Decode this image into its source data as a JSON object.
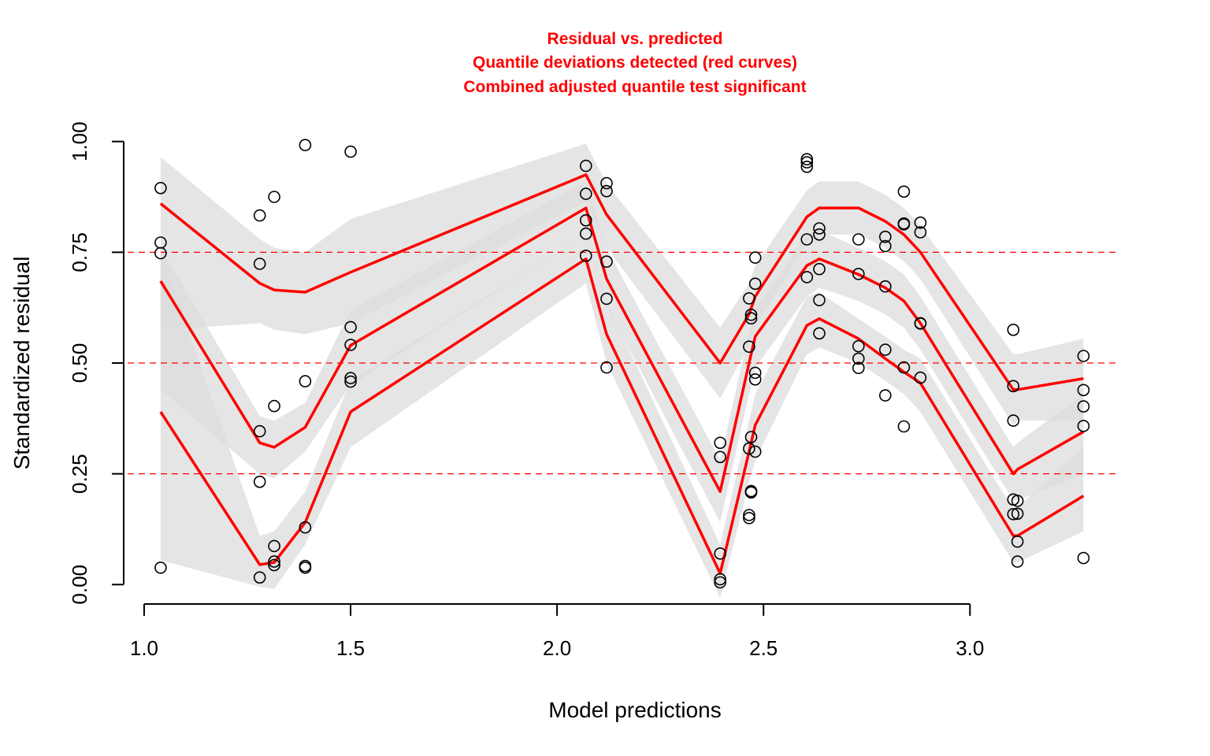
{
  "chart_data": {
    "type": "scatter",
    "title_lines": [
      "Residual vs. predicted",
      "Quantile deviations detected (red curves)",
      "Combined adjusted quantile test significant"
    ],
    "xlabel": "Model predictions",
    "ylabel": "Standardized residual",
    "xlim": [
      0.96,
      3.36
    ],
    "ylim": [
      -0.035,
      1.035
    ],
    "x_ticks": [
      1.0,
      1.5,
      2.0,
      2.5,
      3.0
    ],
    "x_tick_labels": [
      "1.0",
      "1.5",
      "2.0",
      "2.5",
      "3.0"
    ],
    "y_ticks": [
      0.0,
      0.25,
      0.5,
      0.75,
      1.0
    ],
    "y_tick_labels": [
      "0.00",
      "0.25",
      "0.50",
      "0.75",
      "1.00"
    ],
    "reference_lines": [
      0.25,
      0.5,
      0.75
    ],
    "grid": false,
    "colors": {
      "title": "#ff0000",
      "quantile_curve": "#ff0000",
      "reference_line": "#ff0000",
      "band": "#dcdcdc",
      "band_overlap": "#c4c4c4",
      "points": "#000000",
      "axis": "#000000"
    },
    "quantile_x": [
      1.04,
      1.28,
      1.315,
      1.39,
      1.5,
      2.07,
      2.12,
      2.395,
      2.465,
      2.48,
      2.605,
      2.635,
      2.73,
      2.795,
      2.84,
      2.88,
      3.105,
      3.115,
      3.275
    ],
    "quantile_curves": [
      {
        "quantile": 0.25,
        "values": [
          0.39,
          0.045,
          0.05,
          0.14,
          0.39,
          0.735,
          0.565,
          0.025,
          0.3,
          0.36,
          0.585,
          0.6,
          0.555,
          0.51,
          0.48,
          0.455,
          0.11,
          0.11,
          0.2
        ]
      },
      {
        "quantile": 0.5,
        "values": [
          0.685,
          0.32,
          0.31,
          0.355,
          0.54,
          0.85,
          0.69,
          0.21,
          0.5,
          0.56,
          0.72,
          0.735,
          0.7,
          0.67,
          0.64,
          0.59,
          0.25,
          0.26,
          0.345
        ]
      },
      {
        "quantile": 0.75,
        "values": [
          0.86,
          0.68,
          0.665,
          0.66,
          0.705,
          0.925,
          0.835,
          0.5,
          0.61,
          0.65,
          0.83,
          0.85,
          0.85,
          0.82,
          0.79,
          0.75,
          0.44,
          0.44,
          0.465
        ]
      }
    ],
    "simulation_bands": [
      {
        "quantile": 0.25,
        "lower": [
          0.055,
          -0.005,
          -0.01,
          0.09,
          0.31,
          0.68,
          0.5,
          -0.03,
          0.23,
          0.28,
          0.52,
          0.535,
          0.5,
          0.46,
          0.43,
          0.39,
          0.05,
          0.05,
          0.12
        ],
        "upper": [
          0.75,
          0.11,
          0.12,
          0.21,
          0.46,
          0.79,
          0.64,
          0.09,
          0.37,
          0.43,
          0.65,
          0.66,
          0.6,
          0.56,
          0.53,
          0.51,
          0.17,
          0.175,
          0.31
        ]
      },
      {
        "quantile": 0.5,
        "lower": [
          0.44,
          0.25,
          0.24,
          0.3,
          0.45,
          0.79,
          0.63,
          0.14,
          0.43,
          0.49,
          0.65,
          0.67,
          0.64,
          0.61,
          0.58,
          0.53,
          0.19,
          0.19,
          0.25
        ],
        "upper": [
          0.76,
          0.38,
          0.37,
          0.41,
          0.62,
          0.91,
          0.76,
          0.28,
          0.57,
          0.62,
          0.79,
          0.8,
          0.76,
          0.73,
          0.7,
          0.65,
          0.31,
          0.32,
          0.43
        ]
      },
      {
        "quantile": 0.75,
        "lower": [
          0.575,
          0.59,
          0.575,
          0.565,
          0.59,
          0.865,
          0.76,
          0.42,
          0.54,
          0.58,
          0.77,
          0.79,
          0.79,
          0.76,
          0.73,
          0.69,
          0.36,
          0.37,
          0.37
        ],
        "upper": [
          0.965,
          0.78,
          0.76,
          0.75,
          0.825,
          0.995,
          0.905,
          0.58,
          0.68,
          0.72,
          0.89,
          0.91,
          0.91,
          0.88,
          0.85,
          0.81,
          0.52,
          0.52,
          0.555
        ]
      }
    ],
    "points": {
      "x": [
        1.04,
        1.04,
        1.04,
        1.04,
        1.28,
        1.28,
        1.28,
        1.28,
        1.28,
        1.315,
        1.315,
        1.315,
        1.315,
        1.315,
        1.39,
        1.39,
        1.39,
        1.39,
        1.39,
        1.5,
        1.5,
        1.5,
        1.5,
        1.5,
        2.07,
        2.07,
        2.07,
        2.07,
        2.07,
        2.12,
        2.12,
        2.12,
        2.12,
        2.12,
        2.395,
        2.395,
        2.395,
        2.395,
        2.395,
        2.465,
        2.465,
        2.465,
        2.465,
        2.465,
        2.47,
        2.47,
        2.47,
        2.47,
        2.47,
        2.47,
        2.48,
        2.48,
        2.48,
        2.48,
        2.48,
        2.605,
        2.605,
        2.605,
        2.605,
        2.605,
        2.635,
        2.635,
        2.635,
        2.635,
        2.635,
        2.73,
        2.73,
        2.73,
        2.73,
        2.73,
        2.795,
        2.795,
        2.795,
        2.795,
        2.795,
        2.84,
        2.84,
        2.84,
        2.84,
        2.84,
        2.88,
        2.88,
        2.88,
        2.88,
        2.88,
        3.105,
        3.105,
        3.105,
        3.105,
        3.105,
        3.115,
        3.115,
        3.115,
        3.115,
        3.275,
        3.275,
        3.275,
        3.275,
        3.275
      ],
      "y": [
        0.895,
        0.772,
        0.748,
        0.038,
        0.833,
        0.724,
        0.346,
        0.232,
        0.016,
        0.875,
        0.403,
        0.087,
        0.052,
        0.044,
        0.992,
        0.459,
        0.129,
        0.042,
        0.038,
        0.977,
        0.581,
        0.541,
        0.466,
        0.458,
        0.945,
        0.882,
        0.822,
        0.792,
        0.742,
        0.906,
        0.888,
        0.729,
        0.645,
        0.49,
        0.32,
        0.288,
        0.07,
        0.012,
        0.005,
        0.646,
        0.537,
        0.307,
        0.157,
        0.15,
        0.609,
        0.601,
        0.333,
        0.21,
        0.208,
        0.211,
        0.738,
        0.679,
        0.478,
        0.463,
        0.3,
        0.96,
        0.953,
        0.943,
        0.779,
        0.694,
        0.804,
        0.79,
        0.712,
        0.642,
        0.567,
        0.779,
        0.701,
        0.538,
        0.51,
        0.489,
        0.785,
        0.764,
        0.673,
        0.53,
        0.427,
        0.887,
        0.815,
        0.813,
        0.49,
        0.357,
        0.817,
        0.795,
        0.59,
        0.589,
        0.467,
        0.575,
        0.448,
        0.37,
        0.192,
        0.159,
        0.189,
        0.16,
        0.097,
        0.052,
        0.516,
        0.439,
        0.402,
        0.358,
        0.06
      ]
    }
  }
}
